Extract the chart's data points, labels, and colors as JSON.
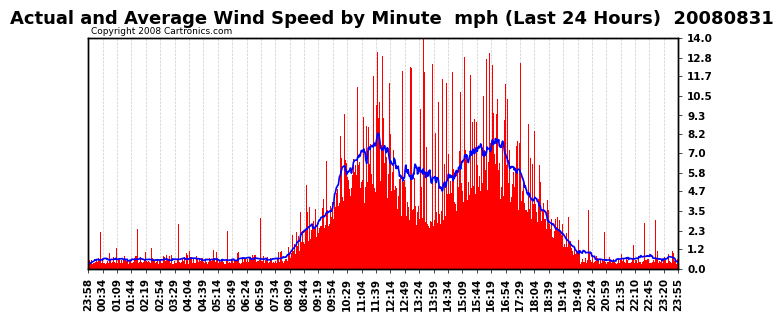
{
  "title": "Actual and Average Wind Speed by Minute  mph (Last 24 Hours)  20080831",
  "copyright": "Copyright 2008 Cartronics.com",
  "background_color": "#ffffff",
  "plot_bg_color": "#ffffff",
  "bar_color": "#ff0000",
  "line_color": "#0000ff",
  "yticks": [
    0.0,
    1.2,
    2.3,
    3.5,
    4.7,
    5.8,
    7.0,
    8.2,
    9.3,
    10.5,
    11.7,
    12.8,
    14.0
  ],
  "ymax": 14.0,
  "ymin": 0.0,
  "n_minutes": 1440,
  "x_tick_labels": [
    "23:58",
    "00:34",
    "01:09",
    "01:44",
    "02:19",
    "02:54",
    "03:29",
    "04:04",
    "04:39",
    "05:14",
    "05:49",
    "06:24",
    "06:59",
    "07:34",
    "08:09",
    "08:44",
    "09:19",
    "09:54",
    "10:29",
    "11:04",
    "11:39",
    "12:14",
    "12:49",
    "13:24",
    "13:59",
    "14:34",
    "15:09",
    "15:44",
    "16:19",
    "16:54",
    "17:29",
    "18:04",
    "18:39",
    "19:14",
    "19:49",
    "20:24",
    "20:59",
    "21:35",
    "22:10",
    "22:45",
    "23:20",
    "23:55"
  ],
  "grid_color": "#cccccc",
  "title_fontsize": 13,
  "tick_fontsize": 7.5
}
